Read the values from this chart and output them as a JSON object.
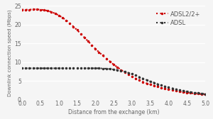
{
  "title": "",
  "xlabel": "Distance from the exchange (km)",
  "ylabel": "Downlink connection speed (Mbps)",
  "xlim": [
    0,
    5
  ],
  "ylim": [
    0,
    25
  ],
  "xticks": [
    0,
    0.5,
    1.0,
    1.5,
    2.0,
    2.5,
    3.0,
    3.5,
    4.0,
    4.5,
    5.0
  ],
  "yticks": [
    0,
    5,
    10,
    15,
    20,
    25
  ],
  "adsl2_x": [
    0.0,
    0.1,
    0.2,
    0.3,
    0.4,
    0.5,
    0.6,
    0.7,
    0.8,
    0.9,
    1.0,
    1.1,
    1.2,
    1.3,
    1.4,
    1.5,
    1.6,
    1.7,
    1.8,
    1.9,
    2.0,
    2.1,
    2.2,
    2.3,
    2.4,
    2.5,
    2.6,
    2.7,
    2.8,
    2.9,
    3.0,
    3.1,
    3.2,
    3.3,
    3.4,
    3.5,
    3.6,
    3.7,
    3.8,
    3.9,
    4.0,
    4.1,
    4.2,
    4.3,
    4.4,
    4.5,
    4.6,
    4.7,
    4.8,
    4.9,
    5.0
  ],
  "adsl2_y": [
    24.0,
    24.0,
    24.0,
    24.1,
    24.1,
    24.0,
    23.9,
    23.7,
    23.4,
    23.0,
    22.5,
    21.9,
    21.2,
    20.4,
    19.5,
    18.6,
    17.6,
    16.6,
    15.6,
    14.6,
    13.6,
    12.7,
    11.8,
    11.0,
    10.2,
    9.4,
    8.7,
    8.0,
    7.3,
    6.7,
    6.2,
    5.7,
    5.2,
    4.8,
    4.4,
    4.1,
    3.8,
    3.5,
    3.2,
    3.0,
    2.8,
    2.6,
    2.4,
    2.2,
    2.1,
    1.95,
    1.8,
    1.7,
    1.6,
    1.5,
    1.45
  ],
  "adsl_x": [
    0.0,
    0.1,
    0.2,
    0.3,
    0.4,
    0.5,
    0.6,
    0.7,
    0.8,
    0.9,
    1.0,
    1.1,
    1.2,
    1.3,
    1.4,
    1.5,
    1.6,
    1.7,
    1.8,
    1.9,
    2.0,
    2.1,
    2.2,
    2.3,
    2.4,
    2.5,
    2.6,
    2.7,
    2.8,
    2.9,
    3.0,
    3.1,
    3.2,
    3.3,
    3.4,
    3.5,
    3.6,
    3.7,
    3.8,
    3.9,
    4.0,
    4.1,
    4.2,
    4.3,
    4.4,
    4.5,
    4.6,
    4.7,
    4.8,
    4.9,
    5.0
  ],
  "adsl_y": [
    8.4,
    8.4,
    8.4,
    8.4,
    8.4,
    8.4,
    8.4,
    8.4,
    8.4,
    8.4,
    8.4,
    8.4,
    8.4,
    8.4,
    8.4,
    8.4,
    8.4,
    8.4,
    8.4,
    8.4,
    8.4,
    8.4,
    8.35,
    8.3,
    8.2,
    8.1,
    7.95,
    7.75,
    7.5,
    7.2,
    6.9,
    6.5,
    6.1,
    5.7,
    5.3,
    4.9,
    4.6,
    4.2,
    3.9,
    3.6,
    3.35,
    3.1,
    2.85,
    2.65,
    2.45,
    2.25,
    2.1,
    1.95,
    1.8,
    1.68,
    1.55
  ],
  "adsl2_color": "#cc0000",
  "adsl_color": "#333333",
  "bg_color": "#f5f5f5",
  "legend_adsl2": "ADSL2/2+",
  "legend_adsl": "ADSL",
  "xlabel_fontsize": 5.5,
  "ylabel_fontsize": 5.0,
  "tick_fontsize": 5.5,
  "legend_fontsize": 6.0
}
